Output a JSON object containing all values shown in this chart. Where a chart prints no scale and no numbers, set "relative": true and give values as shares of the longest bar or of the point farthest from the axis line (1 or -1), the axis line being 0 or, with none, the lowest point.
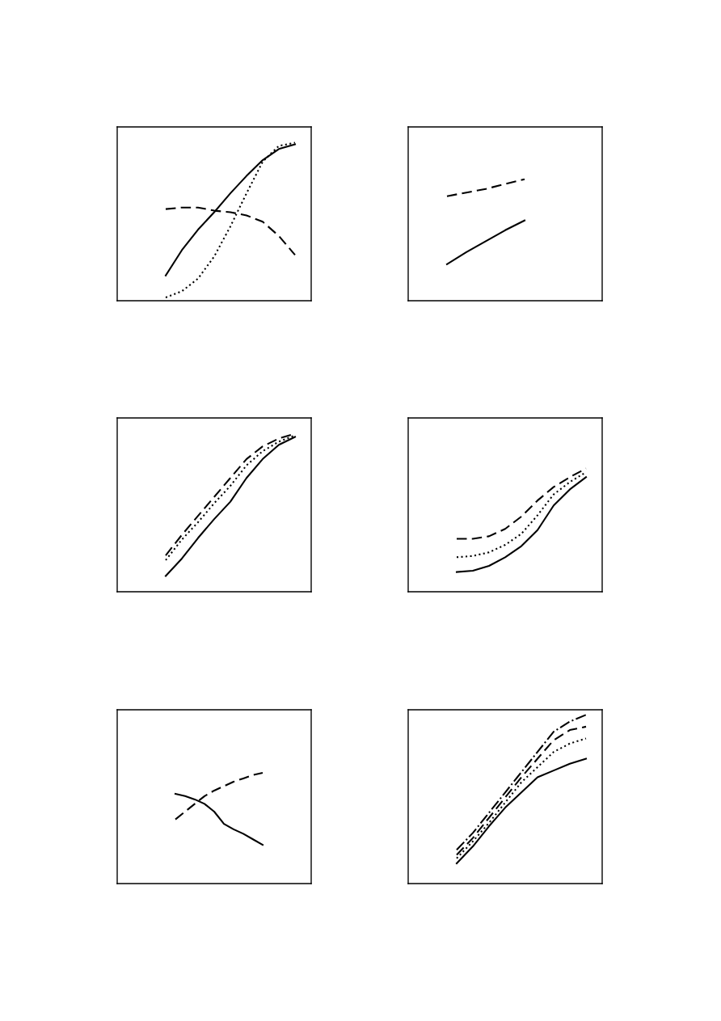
{
  "chart_data": [
    {
      "type": "line",
      "relative": true,
      "categories": [
        null,
        null,
        null,
        null,
        null,
        null,
        null,
        null,
        null,
        null,
        null,
        null,
        null
      ],
      "series": [
        {
          "color": "#000000",
          "line_style": "solid",
          "values": [
            null,
            null,
            null,
            0.16,
            0.32,
            0.45,
            0.56,
            0.68,
            0.79,
            0.89,
            0.96,
            0.99,
            null
          ]
        },
        {
          "color": "#000000",
          "line_style": "dashed",
          "values": [
            null,
            null,
            null,
            0.58,
            0.59,
            0.59,
            0.57,
            0.56,
            0.54,
            0.5,
            0.41,
            0.29,
            null
          ]
        },
        {
          "color": "#000000",
          "line_style": "dotted",
          "values": [
            null,
            null,
            null,
            0.02,
            0.06,
            0.14,
            0.28,
            0.47,
            0.68,
            0.88,
            0.98,
            1.0,
            null
          ]
        }
      ]
    },
    {
      "type": "line",
      "relative": true,
      "categories": [
        null,
        null,
        null,
        null,
        null,
        null,
        null,
        null,
        null,
        null,
        null
      ],
      "series": [
        {
          "color": "#000000",
          "line_style": "solid",
          "values": [
            null,
            null,
            0.3,
            0.4,
            0.49,
            0.58,
            0.66,
            null,
            null,
            null,
            null
          ]
        },
        {
          "color": "#000000",
          "line_style": "dashed",
          "values": [
            null,
            null,
            0.86,
            0.89,
            0.92,
            0.96,
            1.0,
            null,
            null,
            null,
            null
          ]
        }
      ]
    },
    {
      "type": "line",
      "relative": true,
      "categories": [
        null,
        null,
        null,
        null,
        null,
        null,
        null,
        null,
        null,
        null,
        null,
        null,
        null
      ],
      "series": [
        {
          "color": "#000000",
          "line_style": "solid",
          "values": [
            null,
            null,
            null,
            0.1,
            0.21,
            0.34,
            0.46,
            0.57,
            0.72,
            0.84,
            0.93,
            0.98,
            null
          ]
        },
        {
          "color": "#000000",
          "line_style": "dotted",
          "values": [
            null,
            null,
            null,
            0.2,
            0.33,
            0.44,
            0.56,
            0.67,
            0.8,
            0.89,
            0.95,
            0.99,
            null
          ]
        },
        {
          "color": "#000000",
          "line_style": "dashed",
          "values": [
            null,
            null,
            null,
            0.23,
            0.36,
            0.48,
            0.6,
            0.72,
            0.84,
            0.92,
            0.97,
            1.0,
            null
          ]
        }
      ]
    },
    {
      "type": "line",
      "relative": true,
      "categories": [
        null,
        null,
        null,
        null,
        null,
        null,
        null,
        null,
        null,
        null,
        null,
        null,
        null
      ],
      "series": [
        {
          "color": "#000000",
          "line_style": "solid",
          "values": [
            null,
            null,
            null,
            0.16,
            0.17,
            0.21,
            0.28,
            0.37,
            0.5,
            0.7,
            0.83,
            0.93,
            null
          ]
        },
        {
          "color": "#000000",
          "line_style": "dotted",
          "values": [
            null,
            null,
            null,
            0.28,
            0.29,
            0.32,
            0.38,
            0.47,
            0.62,
            0.79,
            0.89,
            0.97,
            null
          ]
        },
        {
          "color": "#000000",
          "line_style": "dashed",
          "values": [
            null,
            null,
            null,
            0.43,
            0.43,
            0.45,
            0.51,
            0.61,
            0.74,
            0.85,
            0.93,
            1.0,
            null
          ]
        }
      ]
    },
    {
      "type": "line",
      "relative": true,
      "categories": [
        null,
        null,
        null,
        null,
        null,
        null,
        null,
        null,
        null,
        null,
        null,
        null,
        null,
        null,
        null,
        null,
        null,
        null,
        null,
        null,
        null
      ],
      "series": [
        {
          "color": "#000000",
          "line_style": "solid",
          "values": [
            null,
            null,
            null,
            null,
            null,
            null,
            0.81,
            0.79,
            0.76,
            0.72,
            0.65,
            0.54,
            0.49,
            0.45,
            0.4,
            0.35,
            null,
            null,
            null,
            null,
            null
          ]
        },
        {
          "color": "#000000",
          "line_style": "dashed",
          "values": [
            null,
            null,
            null,
            null,
            null,
            null,
            0.58,
            0.65,
            0.72,
            0.79,
            0.84,
            0.88,
            0.92,
            0.95,
            0.98,
            1.0,
            null,
            null,
            null,
            null,
            null
          ]
        }
      ]
    },
    {
      "type": "line",
      "relative": true,
      "categories": [
        null,
        null,
        null,
        null,
        null,
        null,
        null,
        null,
        null,
        null,
        null,
        null,
        null
      ],
      "series": [
        {
          "color": "#000000",
          "line_style": "solid",
          "values": [
            null,
            null,
            null,
            0.12,
            0.22,
            0.34,
            0.45,
            0.54,
            0.63,
            0.67,
            0.71,
            0.74,
            null
          ]
        },
        {
          "color": "#000000",
          "line_style": "dotted",
          "values": [
            null,
            null,
            null,
            0.15,
            0.25,
            0.36,
            0.48,
            0.6,
            0.69,
            0.78,
            0.83,
            0.86,
            null
          ]
        },
        {
          "color": "#000000",
          "line_style": "dashed",
          "values": [
            null,
            null,
            null,
            0.17,
            0.27,
            0.39,
            0.51,
            0.63,
            0.74,
            0.85,
            0.91,
            0.93,
            null
          ]
        },
        {
          "color": "#000000",
          "line_style": "dashdot",
          "values": [
            null,
            null,
            null,
            0.2,
            0.3,
            0.42,
            0.54,
            0.66,
            0.78,
            0.9,
            0.96,
            1.0,
            null
          ]
        }
      ]
    }
  ]
}
